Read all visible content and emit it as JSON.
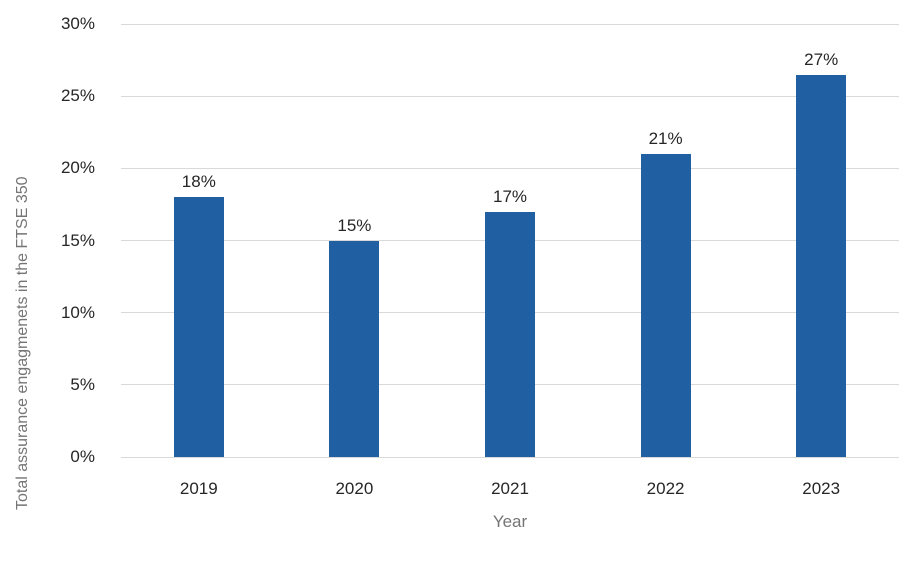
{
  "chart_data": {
    "type": "bar",
    "categories": [
      "2019",
      "2020",
      "2021",
      "2022",
      "2023"
    ],
    "values": [
      18,
      15,
      17,
      21,
      26.5
    ],
    "data_labels": [
      "18%",
      "15%",
      "17%",
      "21%",
      "27%"
    ],
    "xlabel": "Year",
    "ylabel": "Total assurance engagmenets in the FTSE 350",
    "ylim": [
      0,
      30
    ],
    "yticks": {
      "values": [
        30,
        25,
        20,
        15,
        10,
        5,
        0
      ],
      "labels": [
        "30%",
        "25%",
        "20%",
        "15%",
        "10%",
        "5%",
        "0%"
      ]
    },
    "grid": true,
    "legend": false,
    "colors": {
      "bar": "#2060A2",
      "gridline": "#D9D9D9",
      "tick_text": "#262626",
      "axis_title_text": "#757575",
      "background": "#FFFFFF"
    }
  }
}
